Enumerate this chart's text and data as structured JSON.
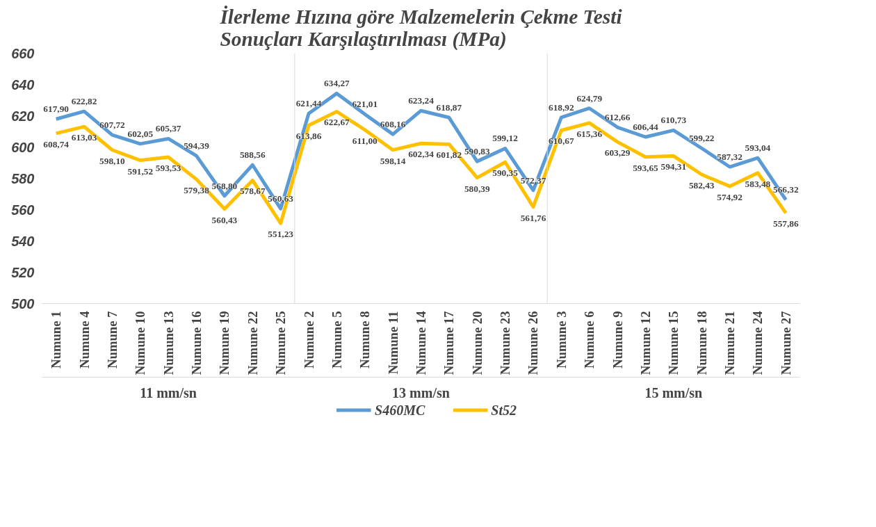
{
  "chart_data": {
    "type": "line",
    "title": "İlerleme Hızına göre Malzemelerin Çekme Testi Sonuçları Karşılaştırılması (MPa)",
    "categories": [
      "Numune 1",
      "Numune 4",
      "Numune 7",
      "Numune 10",
      "Numune 13",
      "Numune 16",
      "Numune 19",
      "Numune 22",
      "Numune 25",
      "Numune 2",
      "Numune 5",
      "Numune 8",
      "Numune 11",
      "Numune 14",
      "Numune 17",
      "Numune 20",
      "Numune 23",
      "Numune 26",
      "Numune 3",
      "Numune 6",
      "Numune 9",
      "Numune 12",
      "Numune 15",
      "Numune 18",
      "Numune 21",
      "Numune 24",
      "Numune 27"
    ],
    "annotations": [
      "11 mm/sn",
      "13 mm/sn",
      "15 mm/sn"
    ],
    "series": [
      {
        "name": "S460MC",
        "color": "#5b9bd5",
        "values": [
          617.9,
          622.82,
          607.72,
          602.05,
          605.37,
          594.39,
          568.8,
          588.56,
          560.63,
          621.44,
          634.27,
          621.01,
          608.16,
          623.24,
          618.87,
          590.83,
          599.12,
          572.37,
          618.92,
          624.79,
          612.66,
          606.44,
          610.73,
          599.22,
          587.32,
          593.04,
          566.32
        ],
        "value_labels": [
          "617,90",
          "622,82",
          "607,72",
          "602,05",
          "605,37",
          "594,39",
          "568,80",
          "588,56",
          "560,63",
          "621,44",
          "634,27",
          "621,01",
          "608,16",
          "623,24",
          "618,87",
          "590,83",
          "599,12",
          "572,37",
          "618,92",
          "624,79",
          "612,66",
          "606,44",
          "610,73",
          "599,22",
          "587,32",
          "593,04",
          "566,32"
        ]
      },
      {
        "name": "St52",
        "color": "#ffc000",
        "values": [
          608.74,
          613.03,
          598.1,
          591.52,
          593.53,
          579.38,
          560.43,
          578.67,
          551.23,
          613.86,
          622.67,
          611.0,
          598.14,
          602.34,
          601.82,
          580.39,
          590.35,
          561.76,
          610.67,
          615.36,
          603.29,
          593.65,
          594.31,
          582.43,
          574.92,
          583.48,
          557.86
        ],
        "value_labels": [
          "608,74",
          "613,03",
          "598,10",
          "591,52",
          "593,53",
          "579,38",
          "560,43",
          "578,67",
          "551,23",
          "613,86",
          "622,67",
          "611,00",
          "598,14",
          "602,34",
          "601,82",
          "580,39",
          "590,35",
          "561,76",
          "610,67",
          "615,36",
          "603,29",
          "593,65",
          "594,31",
          "582,43",
          "574,92",
          "583,48",
          "557,86"
        ]
      }
    ],
    "ylim": [
      500,
      660
    ],
    "yticks": [
      500,
      520,
      540,
      560,
      580,
      600,
      620,
      640,
      660
    ],
    "grid": false,
    "legend": "bottom",
    "marker": "none",
    "line_style": "solid"
  }
}
